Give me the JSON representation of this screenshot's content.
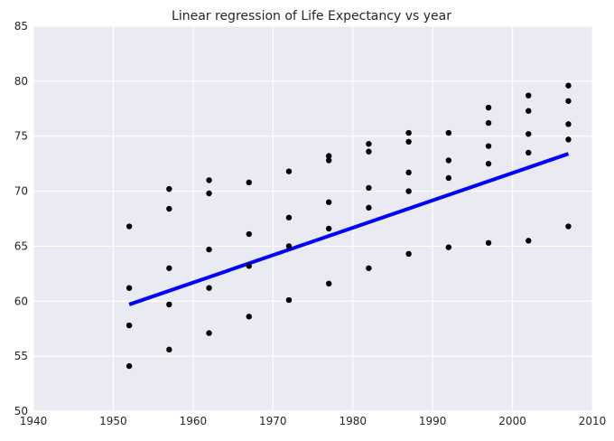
{
  "chart_data": {
    "type": "scatter",
    "title": "Linear regression of Life Expectancy vs year",
    "xlabel": "",
    "ylabel": "",
    "xlim": [
      1940,
      2010
    ],
    "ylim": [
      50,
      85
    ],
    "xticks": [
      "1940",
      "1950",
      "1960",
      "1970",
      "1980",
      "1990",
      "2000",
      "2010"
    ],
    "yticks": [
      "50",
      "55",
      "60",
      "65",
      "70",
      "75",
      "80",
      "85"
    ],
    "grid": true,
    "legend": "none",
    "colors": {
      "background": "#eaeaf2",
      "grid": "#ffffff",
      "points": "#000000",
      "regression_line": "#0000ff"
    },
    "series": [
      {
        "kind": "scatter",
        "points": [
          [
            1952,
            66.8
          ],
          [
            1952,
            61.2
          ],
          [
            1952,
            57.8
          ],
          [
            1952,
            54.1
          ],
          [
            1957,
            70.2
          ],
          [
            1957,
            68.4
          ],
          [
            1957,
            63.0
          ],
          [
            1957,
            59.7
          ],
          [
            1957,
            55.6
          ],
          [
            1962,
            71.0
          ],
          [
            1962,
            69.8
          ],
          [
            1962,
            64.7
          ],
          [
            1962,
            61.2
          ],
          [
            1962,
            57.1
          ],
          [
            1967,
            70.8
          ],
          [
            1967,
            66.1
          ],
          [
            1967,
            63.2
          ],
          [
            1967,
            58.6
          ],
          [
            1972,
            71.8
          ],
          [
            1972,
            67.6
          ],
          [
            1972,
            65.0
          ],
          [
            1972,
            60.1
          ],
          [
            1977,
            73.2
          ],
          [
            1977,
            72.8
          ],
          [
            1977,
            69.0
          ],
          [
            1977,
            66.6
          ],
          [
            1977,
            61.6
          ],
          [
            1982,
            74.3
          ],
          [
            1982,
            73.6
          ],
          [
            1982,
            70.3
          ],
          [
            1982,
            68.5
          ],
          [
            1982,
            63.0
          ],
          [
            1987,
            75.3
          ],
          [
            1987,
            74.5
          ],
          [
            1987,
            71.7
          ],
          [
            1987,
            70.0
          ],
          [
            1987,
            64.3
          ],
          [
            1992,
            75.3
          ],
          [
            1992,
            72.8
          ],
          [
            1992,
            71.2
          ],
          [
            1992,
            64.9
          ],
          [
            1997,
            77.6
          ],
          [
            1997,
            76.2
          ],
          [
            1997,
            74.1
          ],
          [
            1997,
            72.5
          ],
          [
            1997,
            65.3
          ],
          [
            2002,
            78.7
          ],
          [
            2002,
            77.3
          ],
          [
            2002,
            75.2
          ],
          [
            2002,
            73.5
          ],
          [
            2002,
            65.5
          ],
          [
            2007,
            79.6
          ],
          [
            2007,
            78.2
          ],
          [
            2007,
            76.1
          ],
          [
            2007,
            74.7
          ],
          [
            2007,
            66.8
          ]
        ]
      },
      {
        "kind": "line",
        "x": [
          1952,
          2007
        ],
        "y": [
          59.7,
          73.4
        ]
      }
    ]
  }
}
